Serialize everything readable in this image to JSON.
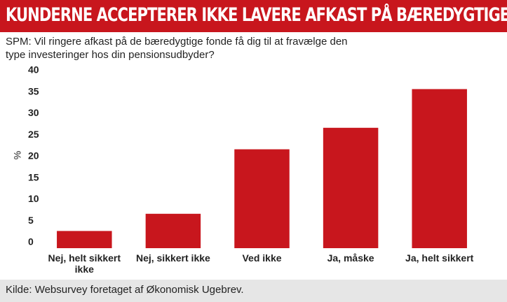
{
  "chart_data": {
    "type": "bar",
    "title": "KUNDERNE ACCEPTERER IKKE LAVERE AFKAST PÅ BÆREDYGTIGE PRODUKTER",
    "subtitle": "SPM: Vil ringere afkast på de bæredygtige fonde få dig til at fravælge den type investeringer hos din pensionsudbyder?",
    "y_label": "%",
    "categories": [
      "Nej, helt sikkert ikke",
      "Nej, sikkert ikke",
      "Ved ikke",
      "Ja, måske",
      "Ja, helt sikkert"
    ],
    "values": [
      4,
      8,
      23,
      28,
      37
    ],
    "color": "#c8161d",
    "ylim": [
      0,
      40
    ],
    "yticks": [
      0,
      5,
      10,
      15,
      20,
      25,
      30,
      35,
      40
    ],
    "grid": false,
    "source": "Kilde: Websurvey foretaget af Økonomisk Ugebrev."
  }
}
